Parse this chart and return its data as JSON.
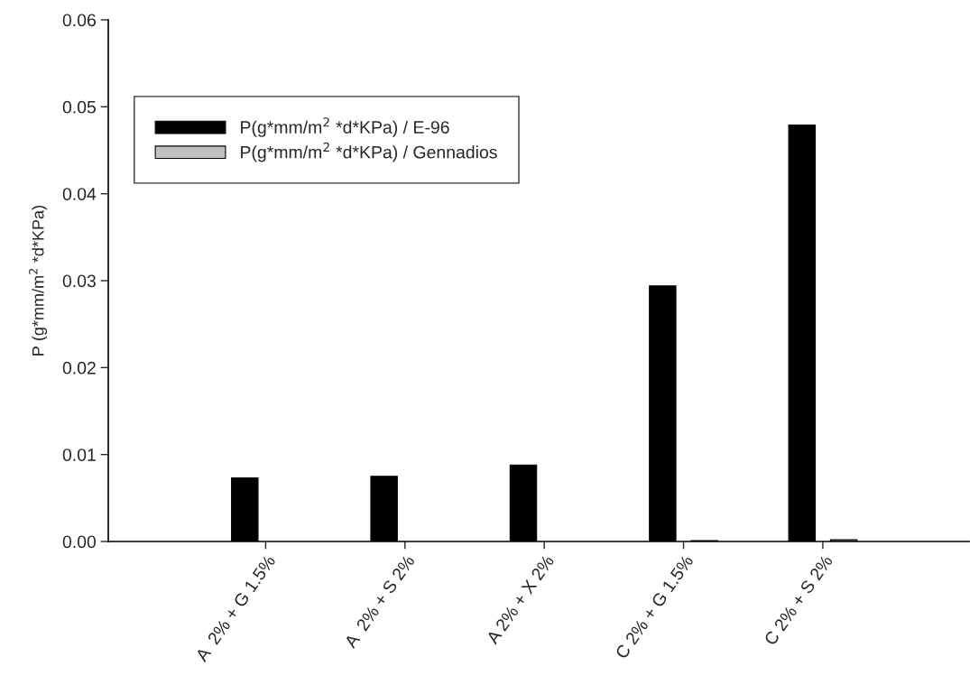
{
  "chart_data": {
    "type": "bar",
    "ylabel": "P (g*mm/m$^{2}$ *d*KPa)",
    "categories": [
      "A  2% + G 1.5%",
      "A  2% + S 2%",
      "A 2% + X 2%",
      "C 2% + G 1.5%",
      "C 2% + S 2%"
    ],
    "series": [
      {
        "name": "P(g*mm/m$^{2}$ *d*KPa) / E-96",
        "color": "#000000",
        "values": [
          0.0073,
          0.0075,
          0.0088,
          0.0294,
          0.0479
        ]
      },
      {
        "name": "P(g*mm/m$^{2}$ *d*KPa) / Gennadios",
        "color": "#c0c0c0",
        "values": [
          0,
          0,
          0,
          0.0001,
          0.0002
        ]
      }
    ],
    "ylim": [
      0,
      0.06
    ],
    "yticks": [
      {
        "value": 0,
        "label": "0.00"
      },
      {
        "value": 0.01,
        "label": "0.01"
      },
      {
        "value": 0.02,
        "label": "0.02"
      },
      {
        "value": 0.03,
        "label": "0.03"
      },
      {
        "value": 0.04,
        "label": "0.04"
      },
      {
        "value": 0.05,
        "label": "0.05"
      },
      {
        "value": 0.06,
        "label": "0.06"
      }
    ],
    "legend": "top left",
    "grid": false
  }
}
